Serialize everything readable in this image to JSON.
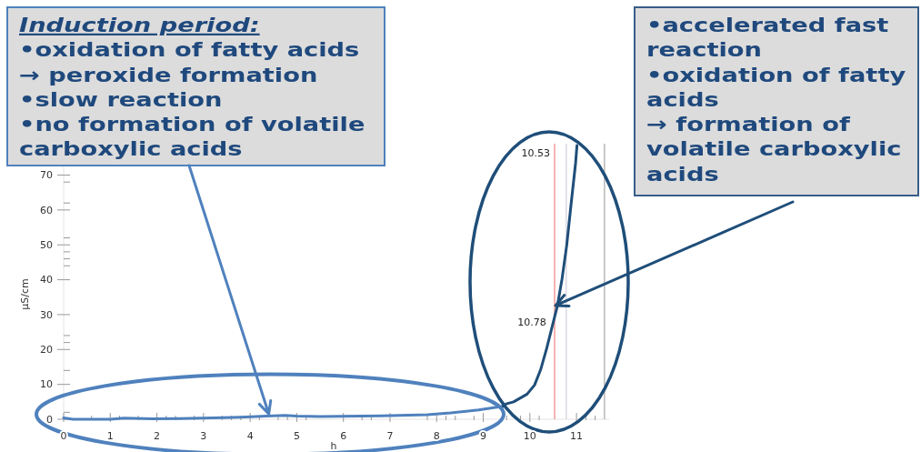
{
  "chart_data": {
    "type": "line",
    "xlabel": "h",
    "ylabel": "µS/cm",
    "series": [
      {
        "color": "#4f81bd",
        "x": [
          0,
          0.2,
          0.6,
          1.0,
          1.3,
          1.9,
          2.5,
          3.2,
          3.8,
          4.35,
          4.75,
          5.0,
          5.5,
          6.8,
          7.8,
          8.3,
          8.9,
          9.42
        ],
        "values": [
          0.4,
          0,
          0,
          0,
          0.3,
          0.1,
          0.2,
          0.4,
          0.6,
          0.9,
          1.1,
          0.9,
          0.8,
          1.0,
          1.3,
          1.8,
          2.7,
          3.7
        ]
      },
      {
        "color": "#1f4e79",
        "x": [
          9.42,
          9.49,
          9.65,
          9.94,
          10.1,
          10.23,
          10.36,
          10.49,
          10.59,
          10.69,
          10.79,
          10.88,
          10.98,
          11.01
        ],
        "values": [
          3.7,
          4.4,
          5.0,
          7.2,
          9.8,
          14.2,
          20.3,
          27.2,
          32.5,
          40.3,
          49.9,
          61.2,
          73.4,
          78.5
        ]
      }
    ],
    "xlim": [
      0,
      11.7
    ],
    "ylim": [
      0,
      79
    ],
    "xticks": [
      0,
      1,
      2,
      3,
      4,
      5,
      6,
      7,
      8,
      9,
      10,
      11,
      {
        "value": 0.6,
        "label": null
      },
      {
        "value": 1.2,
        "label": null
      },
      {
        "value": 1.6,
        "label": null
      },
      {
        "value": 2.2,
        "label": null
      },
      {
        "value": 2.4,
        "label": null
      },
      {
        "value": 2.8,
        "label": null
      },
      {
        "value": 3.4,
        "label": null
      },
      {
        "value": 3.6,
        "label": null
      },
      {
        "value": 3.8,
        "label": null
      },
      {
        "value": 4.2,
        "label": null
      },
      {
        "value": 4.6,
        "label": null
      },
      {
        "value": 4.8,
        "label": null
      },
      {
        "value": 5.2,
        "label": null
      },
      {
        "value": 6.4,
        "label": null
      },
      {
        "value": 6.6,
        "label": null
      },
      {
        "value": 7.8,
        "label": null
      },
      {
        "value": 8.2,
        "label": null
      },
      {
        "value": 8.4,
        "label": null
      },
      {
        "value": 8.8,
        "label": null
      },
      {
        "value": 9.5,
        "label": null
      },
      {
        "value": 9.8,
        "label": null
      },
      {
        "value": 10.2,
        "label": null
      },
      {
        "value": 11.2,
        "label": null
      },
      {
        "value": 11.4,
        "label": null
      }
    ],
    "yticks": [
      0,
      10,
      20,
      30,
      40,
      50,
      60,
      70,
      {
        "value": 2,
        "label": null
      },
      {
        "value": 14,
        "label": null
      },
      {
        "value": 22,
        "label": null
      },
      {
        "value": 24,
        "label": null
      },
      {
        "value": 44,
        "label": null
      },
      {
        "value": 46,
        "label": null
      },
      {
        "value": 48,
        "label": null
      },
      {
        "value": 52,
        "label": null
      },
      {
        "value": 62,
        "label": null
      },
      {
        "value": 68,
        "label": null
      }
    ],
    "ref_lines": [
      {
        "axis": "x",
        "value": 10.53,
        "label": "10.53",
        "color": "#f08080"
      },
      {
        "axis": "x",
        "value": 10.78,
        "label": "10.78",
        "color": "#d0d0dc"
      },
      {
        "axis": "x",
        "value": 11.6,
        "color": "#a6a6a6"
      }
    ],
    "annotations": [
      {
        "text": "Induction period:\n•oxidation of fatty acids\n→ peroxide formation\n•slow reaction\n•no formation of volatile\ncarboxylic acids",
        "x": 4.4,
        "y": 1.5
      },
      {
        "text": "•accelerated fast\nreaction\n•oxidation of fatty\nacids\n→ formation of\nvolatile carboxylic\nacids",
        "x": 10.55,
        "y": 32.6
      }
    ]
  }
}
